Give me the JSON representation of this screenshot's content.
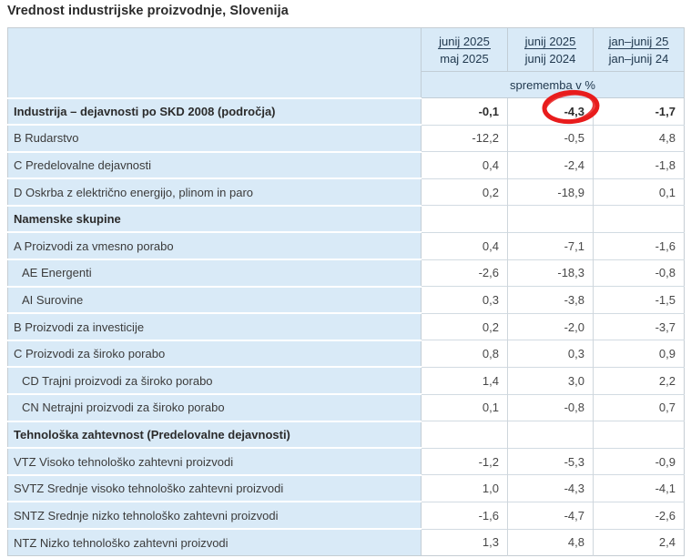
{
  "page_title": "Vrednost industrijske proizvodnje, Slovenija",
  "chart_data": {
    "type": "table",
    "title": "Vrednost industrijske proizvodnje, Slovenija",
    "column_headers": [
      {
        "numerator": "junij 2025",
        "denominator": "maj 2025"
      },
      {
        "numerator": "junij 2025",
        "denominator": "junij 2024"
      },
      {
        "numerator": "jan–junij 25",
        "denominator": "jan–junij 24"
      }
    ],
    "unit_row": "sprememba v %",
    "rows": [
      {
        "label": "Industrija – dejavnosti po SKD 2008 (področja)",
        "bold": true,
        "indent": false,
        "values": [
          "-0,1",
          "-4,3",
          "-1,7"
        ]
      },
      {
        "label": "B Rudarstvo",
        "bold": false,
        "indent": false,
        "values": [
          "-12,2",
          "-0,5",
          "4,8"
        ]
      },
      {
        "label": "C Predelovalne dejavnosti",
        "bold": false,
        "indent": false,
        "values": [
          "0,4",
          "-2,4",
          "-1,8"
        ]
      },
      {
        "label": "D Oskrba z električno energijo, plinom in paro",
        "bold": false,
        "indent": false,
        "values": [
          "0,2",
          "-18,9",
          "0,1"
        ]
      },
      {
        "label": "Namenske skupine",
        "bold": true,
        "indent": false,
        "values": [
          "",
          "",
          ""
        ]
      },
      {
        "label": "A Proizvodi za vmesno porabo",
        "bold": false,
        "indent": false,
        "values": [
          "0,4",
          "-7,1",
          "-1,6"
        ]
      },
      {
        "label": "AE Energenti",
        "bold": false,
        "indent": true,
        "values": [
          "-2,6",
          "-18,3",
          "-0,8"
        ]
      },
      {
        "label": "AI Surovine",
        "bold": false,
        "indent": true,
        "values": [
          "0,3",
          "-3,8",
          "-1,5"
        ]
      },
      {
        "label": "B Proizvodi za investicije",
        "bold": false,
        "indent": false,
        "values": [
          "0,2",
          "-2,0",
          "-3,7"
        ]
      },
      {
        "label": "C Proizvodi za široko porabo",
        "bold": false,
        "indent": false,
        "values": [
          "0,8",
          "0,3",
          "0,9"
        ]
      },
      {
        "label": "CD Trajni proizvodi za široko porabo",
        "bold": false,
        "indent": true,
        "values": [
          "1,4",
          "3,0",
          "2,2"
        ]
      },
      {
        "label": "CN Netrajni proizvodi za široko porabo",
        "bold": false,
        "indent": true,
        "values": [
          "0,1",
          "-0,8",
          "0,7"
        ]
      },
      {
        "label": "Tehnološka zahtevnost (Predelovalne dejavnosti)",
        "bold": true,
        "indent": false,
        "values": [
          "",
          "",
          ""
        ]
      },
      {
        "label": "VTZ Visoko tehnološko zahtevni proizvodi",
        "bold": false,
        "indent": false,
        "values": [
          "-1,2",
          "-5,3",
          "-0,9"
        ]
      },
      {
        "label": "SVTZ Srednje visoko tehnološko zahtevni proizvodi",
        "bold": false,
        "indent": false,
        "values": [
          "1,0",
          "-4,3",
          "-4,1"
        ]
      },
      {
        "label": "SNTZ Srednje nizko tehnološko zahtevni proizvodi",
        "bold": false,
        "indent": false,
        "values": [
          "-1,6",
          "-4,7",
          "-2,6"
        ]
      },
      {
        "label": "NTZ Nizko tehnološko zahtevni proizvodi",
        "bold": false,
        "indent": false,
        "values": [
          "1,3",
          "4,8",
          "2,4"
        ]
      }
    ],
    "annotation": {
      "shape": "hand-drawn-ellipse",
      "around_value": "-4,3",
      "row": "Industrija – dejavnosti po SKD 2008 (področja)",
      "column": "junij 2025 / junij 2024",
      "color": "#e81c1c"
    }
  },
  "colors": {
    "header_bg": "#d9eaf7",
    "stub_bg": "#d9eaf7",
    "annotation_red": "#e81c1c"
  }
}
